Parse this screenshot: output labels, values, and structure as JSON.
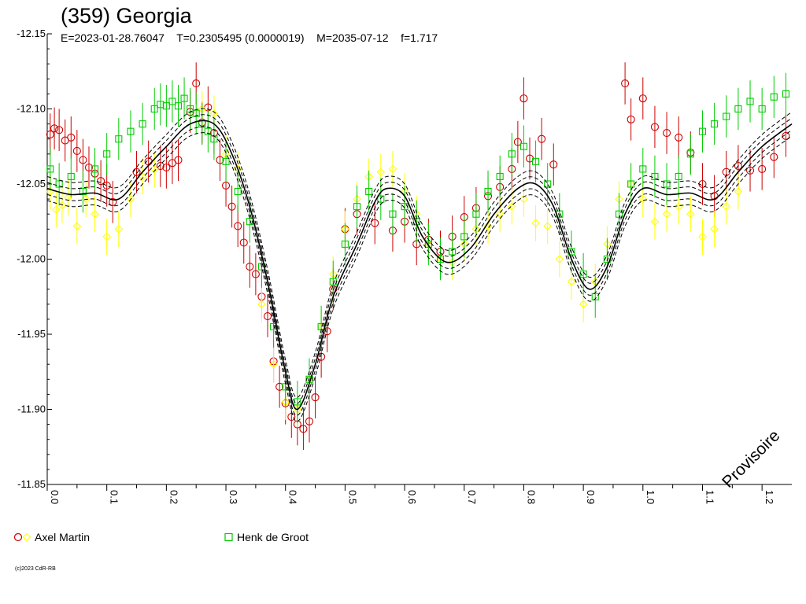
{
  "chart_data": {
    "type": "scatter",
    "title": "(359) Georgia",
    "subtitle": "E=2023-01-28.76047    T=0.2305495 (0.0000019)    M=2035-07-12    f=1.717",
    "watermark": "Provisoire",
    "credit": "(c)2023 CdR-RB",
    "xlim": [
      0.0,
      1.25
    ],
    "ylim": [
      -12.15,
      -11.85
    ],
    "y_inverted": true,
    "y_ticks": [
      -12.15,
      -12.1,
      -12.05,
      -12.0,
      -11.95,
      -11.9,
      -11.85
    ],
    "y_tick_labels": [
      "-12.15",
      "-12.10",
      "-12.05",
      "-12.00",
      "-11.95",
      "-11.90",
      "-11.85"
    ],
    "x_ticks": [
      0.0,
      0.1,
      0.2,
      0.3,
      0.4,
      0.5,
      0.6,
      0.7,
      0.8,
      0.9,
      1.0,
      1.1,
      1.2
    ],
    "x_tick_labels": [
      "0.0",
      "0.1",
      "0.2",
      "0.3",
      "0.4",
      "0.5",
      "0.6",
      "0.7",
      "0.8",
      "0.9",
      "1.0",
      "1.1",
      "1.2"
    ],
    "grid": false,
    "legend": [
      {
        "name": "Axel Martin",
        "markers": [
          "circle",
          "diamond"
        ],
        "colors": [
          "#cc0000",
          "#ffff00"
        ]
      },
      {
        "name": "Henk de Groot",
        "markers": [
          "square"
        ],
        "colors": [
          "#00cc00"
        ]
      }
    ],
    "model_curve": {
      "phase": [
        0.0,
        0.04,
        0.08,
        0.12,
        0.16,
        0.2,
        0.24,
        0.28,
        0.31,
        0.34,
        0.37,
        0.4,
        0.42,
        0.45,
        0.48,
        0.52,
        0.55,
        0.57,
        0.6,
        0.63,
        0.67,
        0.71,
        0.75,
        0.79,
        0.82,
        0.85,
        0.88,
        0.91,
        0.94,
        0.97,
        1.0,
        1.04,
        1.08,
        1.12,
        1.16,
        1.2,
        1.25
      ],
      "mag": [
        -12.047,
        -12.043,
        -12.044,
        -12.04,
        -12.058,
        -12.075,
        -12.09,
        -12.09,
        -12.07,
        -12.035,
        -11.985,
        -11.925,
        -11.9,
        -11.93,
        -11.975,
        -12.01,
        -12.038,
        -12.047,
        -12.042,
        -12.015,
        -11.998,
        -12.007,
        -12.03,
        -12.047,
        -12.05,
        -12.035,
        -12.0,
        -11.98,
        -11.995,
        -12.03,
        -12.047,
        -12.043,
        -12.044,
        -12.04,
        -12.058,
        -12.075,
        -12.09
      ],
      "envelope_offset": 0.004,
      "colors": [
        "#000000"
      ]
    },
    "series": [
      {
        "name": "Axel Martin",
        "marker": "circle",
        "color": "#cc0000",
        "x": [
          0.005,
          0.012,
          0.02,
          0.03,
          0.04,
          0.05,
          0.06,
          0.07,
          0.08,
          0.09,
          0.1,
          0.11,
          0.15,
          0.17,
          0.19,
          0.2,
          0.21,
          0.22,
          0.24,
          0.25,
          0.26,
          0.27,
          0.28,
          0.29,
          0.3,
          0.31,
          0.32,
          0.33,
          0.34,
          0.35,
          0.36,
          0.37,
          0.38,
          0.39,
          0.4,
          0.41,
          0.42,
          0.43,
          0.44,
          0.45,
          0.46,
          0.47,
          0.48,
          0.5,
          0.52,
          0.55,
          0.58,
          0.6,
          0.62,
          0.64,
          0.66,
          0.68,
          0.7,
          0.72,
          0.74,
          0.76,
          0.78,
          0.79,
          0.8,
          0.81,
          0.83,
          0.85,
          0.97,
          0.98,
          1.0,
          1.02,
          1.04,
          1.06,
          1.08,
          1.1,
          1.12,
          1.14,
          1.16,
          1.18,
          1.2,
          1.22,
          1.24
        ],
        "y": [
          -12.083,
          -12.087,
          -12.086,
          -12.079,
          -12.081,
          -12.072,
          -12.066,
          -12.061,
          -12.057,
          -12.052,
          -12.049,
          -12.038,
          -12.058,
          -12.065,
          -12.062,
          -12.061,
          -12.064,
          -12.066,
          -12.098,
          -12.117,
          -12.091,
          -12.101,
          -12.084,
          -12.066,
          -12.049,
          -12.035,
          -12.022,
          -12.011,
          -11.995,
          -11.99,
          -11.975,
          -11.962,
          -11.932,
          -11.915,
          -11.904,
          -11.895,
          -11.89,
          -11.887,
          -11.892,
          -11.908,
          -11.935,
          -11.952,
          -11.98,
          -12.02,
          -12.03,
          -12.024,
          -12.019,
          -12.025,
          -12.01,
          -12.013,
          -12.005,
          -12.015,
          -12.028,
          -12.034,
          -12.042,
          -12.048,
          -12.06,
          -12.078,
          -12.107,
          -12.067,
          -12.08,
          -12.063,
          -12.117,
          -12.093,
          -12.107,
          -12.088,
          -12.084,
          -12.081,
          -12.071,
          -12.05,
          -12.042,
          -12.058,
          -12.062,
          -12.059,
          -12.06,
          -12.068,
          -12.082
        ],
        "err": 0.014
      },
      {
        "name": "Axel Martin",
        "marker": "diamond",
        "color": "#ffff00",
        "x": [
          0.005,
          0.015,
          0.025,
          0.035,
          0.05,
          0.065,
          0.08,
          0.1,
          0.12,
          0.14,
          0.16,
          0.18,
          0.26,
          0.28,
          0.3,
          0.32,
          0.36,
          0.38,
          0.4,
          0.42,
          0.44,
          0.46,
          0.48,
          0.5,
          0.52,
          0.54,
          0.56,
          0.58,
          0.6,
          0.62,
          0.64,
          0.66,
          0.68,
          0.7,
          0.72,
          0.74,
          0.76,
          0.78,
          0.8,
          0.82,
          0.84,
          0.86,
          0.88,
          0.9,
          0.92,
          0.94,
          0.96,
          0.98,
          1.0,
          1.02,
          1.04,
          1.06,
          1.08,
          1.1,
          1.12,
          1.14,
          1.16
        ],
        "y": [
          -12.045,
          -12.033,
          -12.036,
          -12.041,
          -12.022,
          -12.04,
          -12.03,
          -12.015,
          -12.02,
          -12.04,
          -12.055,
          -12.06,
          -12.1,
          -12.097,
          -12.07,
          -12.06,
          -11.97,
          -11.93,
          -11.905,
          -11.9,
          -11.92,
          -11.955,
          -11.99,
          -12.02,
          -12.04,
          -12.055,
          -12.058,
          -12.06,
          -12.045,
          -12.03,
          -12.01,
          -12.0,
          -11.998,
          -12.01,
          -12.02,
          -12.022,
          -12.03,
          -12.035,
          -12.04,
          -12.024,
          -12.022,
          -12.0,
          -11.985,
          -11.97,
          -11.985,
          -12.01,
          -12.04,
          -12.05,
          -12.04,
          -12.025,
          -12.03,
          -12.035,
          -12.03,
          -12.015,
          -12.02,
          -12.035,
          -12.045
        ],
        "err": 0.012
      },
      {
        "name": "Henk de Groot",
        "marker": "square",
        "color": "#00cc00",
        "x": [
          0.005,
          0.02,
          0.04,
          0.06,
          0.08,
          0.1,
          0.12,
          0.14,
          0.16,
          0.18,
          0.19,
          0.2,
          0.21,
          0.22,
          0.23,
          0.24,
          0.25,
          0.26,
          0.27,
          0.28,
          0.3,
          0.32,
          0.34,
          0.36,
          0.38,
          0.4,
          0.42,
          0.44,
          0.46,
          0.48,
          0.5,
          0.52,
          0.54,
          0.56,
          0.58,
          0.6,
          0.62,
          0.64,
          0.66,
          0.68,
          0.7,
          0.72,
          0.74,
          0.76,
          0.78,
          0.8,
          0.82,
          0.84,
          0.86,
          0.88,
          0.9,
          0.92,
          0.94,
          0.96,
          0.98,
          1.0,
          1.02,
          1.04,
          1.06,
          1.08,
          1.1,
          1.12,
          1.14,
          1.16,
          1.18,
          1.2,
          1.22,
          1.24
        ],
        "y": [
          -12.06,
          -12.05,
          -12.055,
          -12.045,
          -12.06,
          -12.07,
          -12.08,
          -12.085,
          -12.09,
          -12.1,
          -12.103,
          -12.102,
          -12.105,
          -12.102,
          -12.107,
          -12.1,
          -12.097,
          -12.09,
          -12.085,
          -12.08,
          -12.065,
          -12.045,
          -12.025,
          -11.995,
          -11.955,
          -11.915,
          -11.905,
          -11.92,
          -11.955,
          -11.985,
          -12.01,
          -12.035,
          -12.045,
          -12.04,
          -12.03,
          -12.035,
          -12.025,
          -12.01,
          -12.0,
          -12.005,
          -12.015,
          -12.03,
          -12.045,
          -12.055,
          -12.07,
          -12.075,
          -12.065,
          -12.05,
          -12.03,
          -12.005,
          -11.99,
          -11.975,
          -12.0,
          -12.03,
          -12.05,
          -12.06,
          -12.055,
          -12.05,
          -12.055,
          -12.07,
          -12.085,
          -12.09,
          -12.095,
          -12.1,
          -12.105,
          -12.1,
          -12.108,
          -12.11
        ],
        "err": 0.014
      }
    ]
  }
}
